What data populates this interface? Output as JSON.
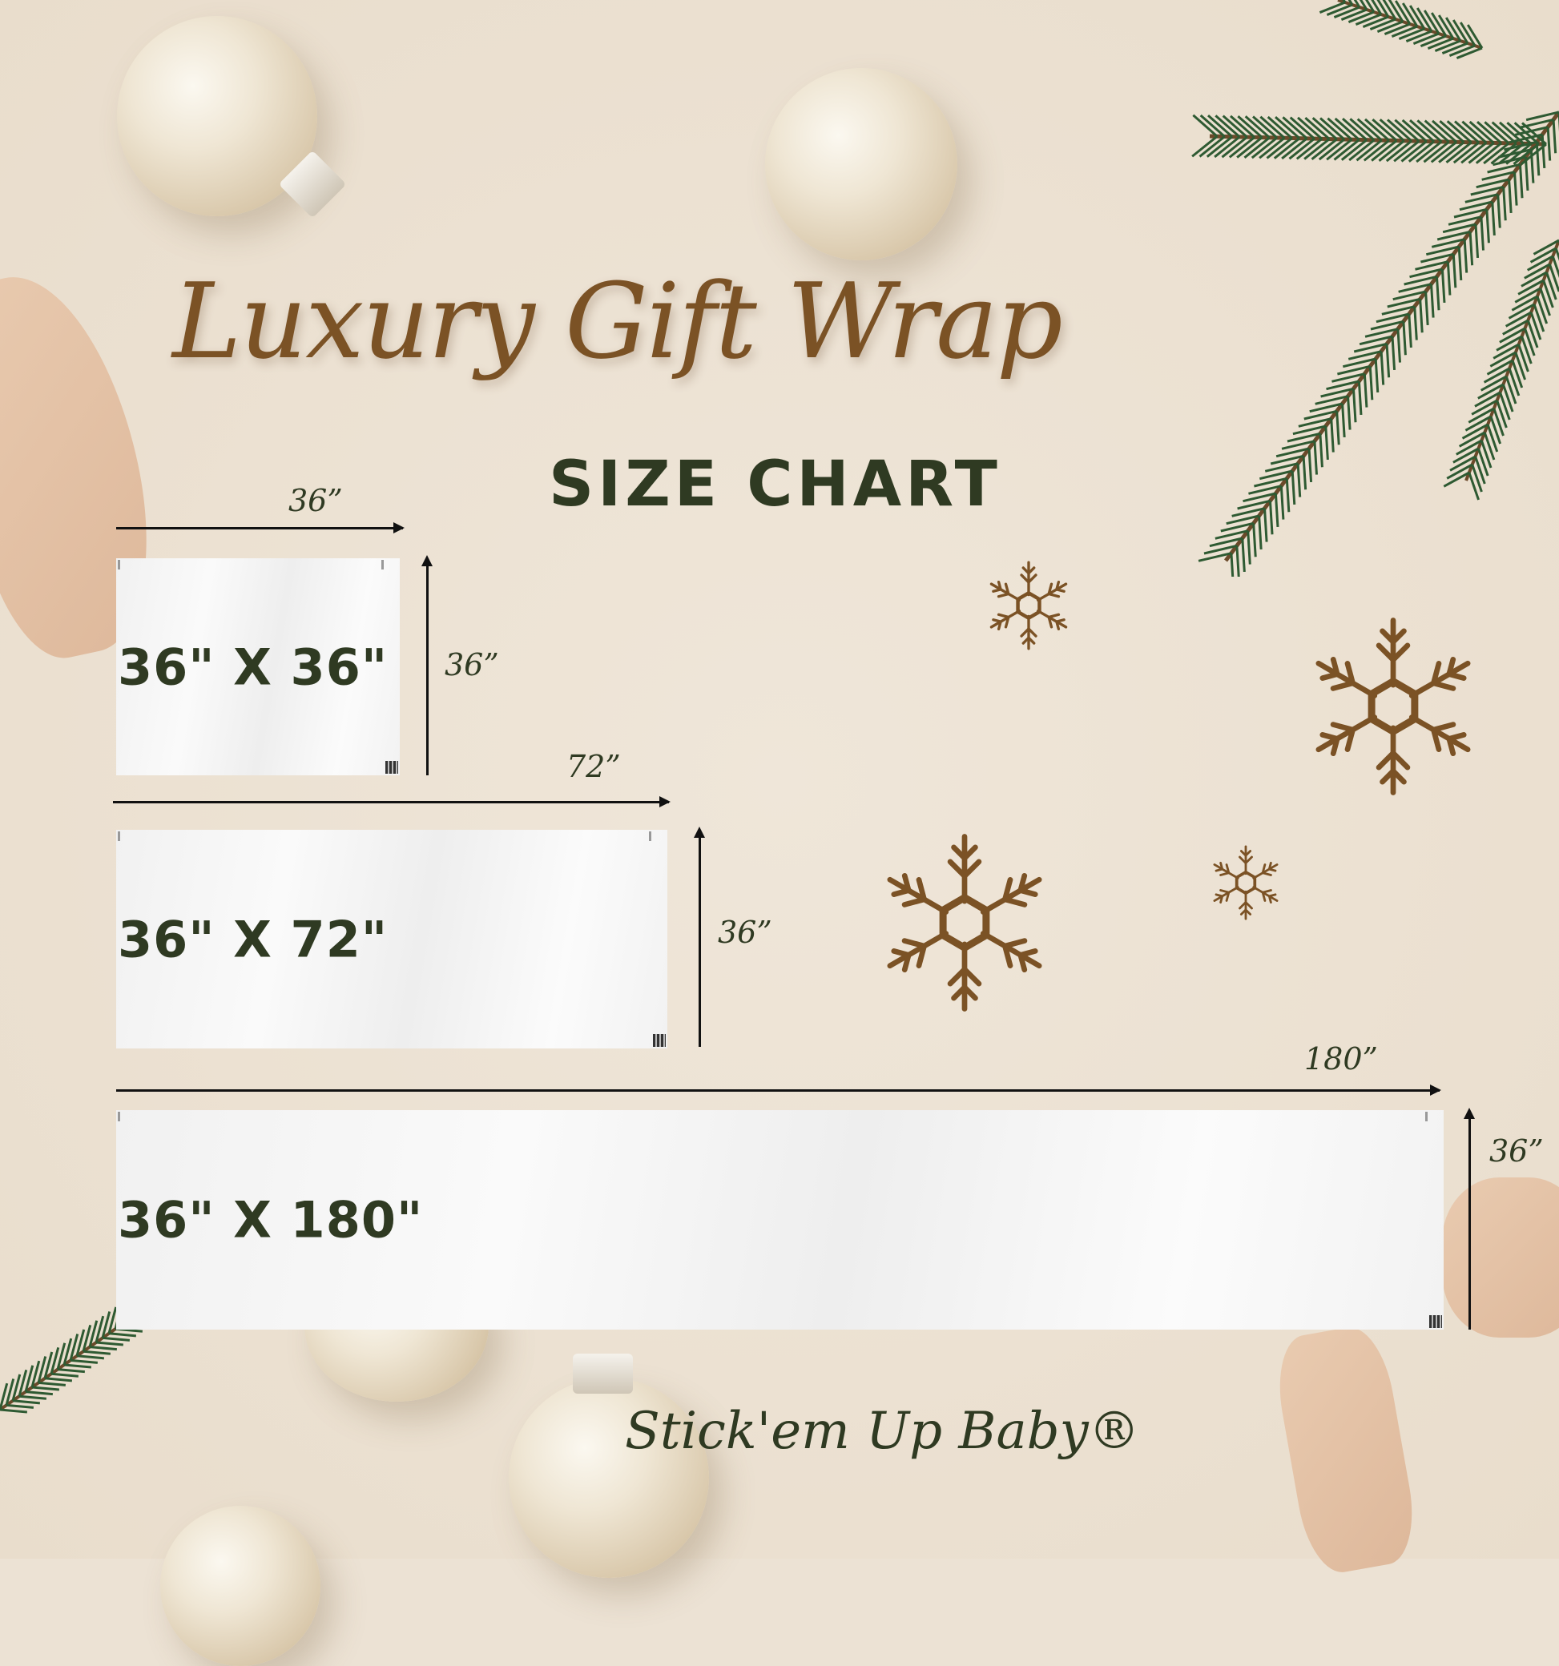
{
  "title": "Luxury Gift Wrap",
  "subtitle": "SIZE CHART",
  "sizes": [
    {
      "label": "36\" X 36\"",
      "width_label": "36”",
      "height_label": "36”",
      "width_in": 36,
      "height_in": 36
    },
    {
      "label": "36\" X 72\"",
      "width_label": "72”",
      "height_label": "36”",
      "width_in": 72,
      "height_in": 36
    },
    {
      "label": "36\" X 180\"",
      "width_label": "180”",
      "height_label": "36”",
      "width_in": 180,
      "height_in": 36
    }
  ],
  "brand": "Stick'em Up Baby®",
  "colors": {
    "title": "#7b5225",
    "text": "#2f3a22",
    "background": "#ece2d4",
    "snowflake": "#7b5225",
    "pine": "#2e5a32"
  }
}
